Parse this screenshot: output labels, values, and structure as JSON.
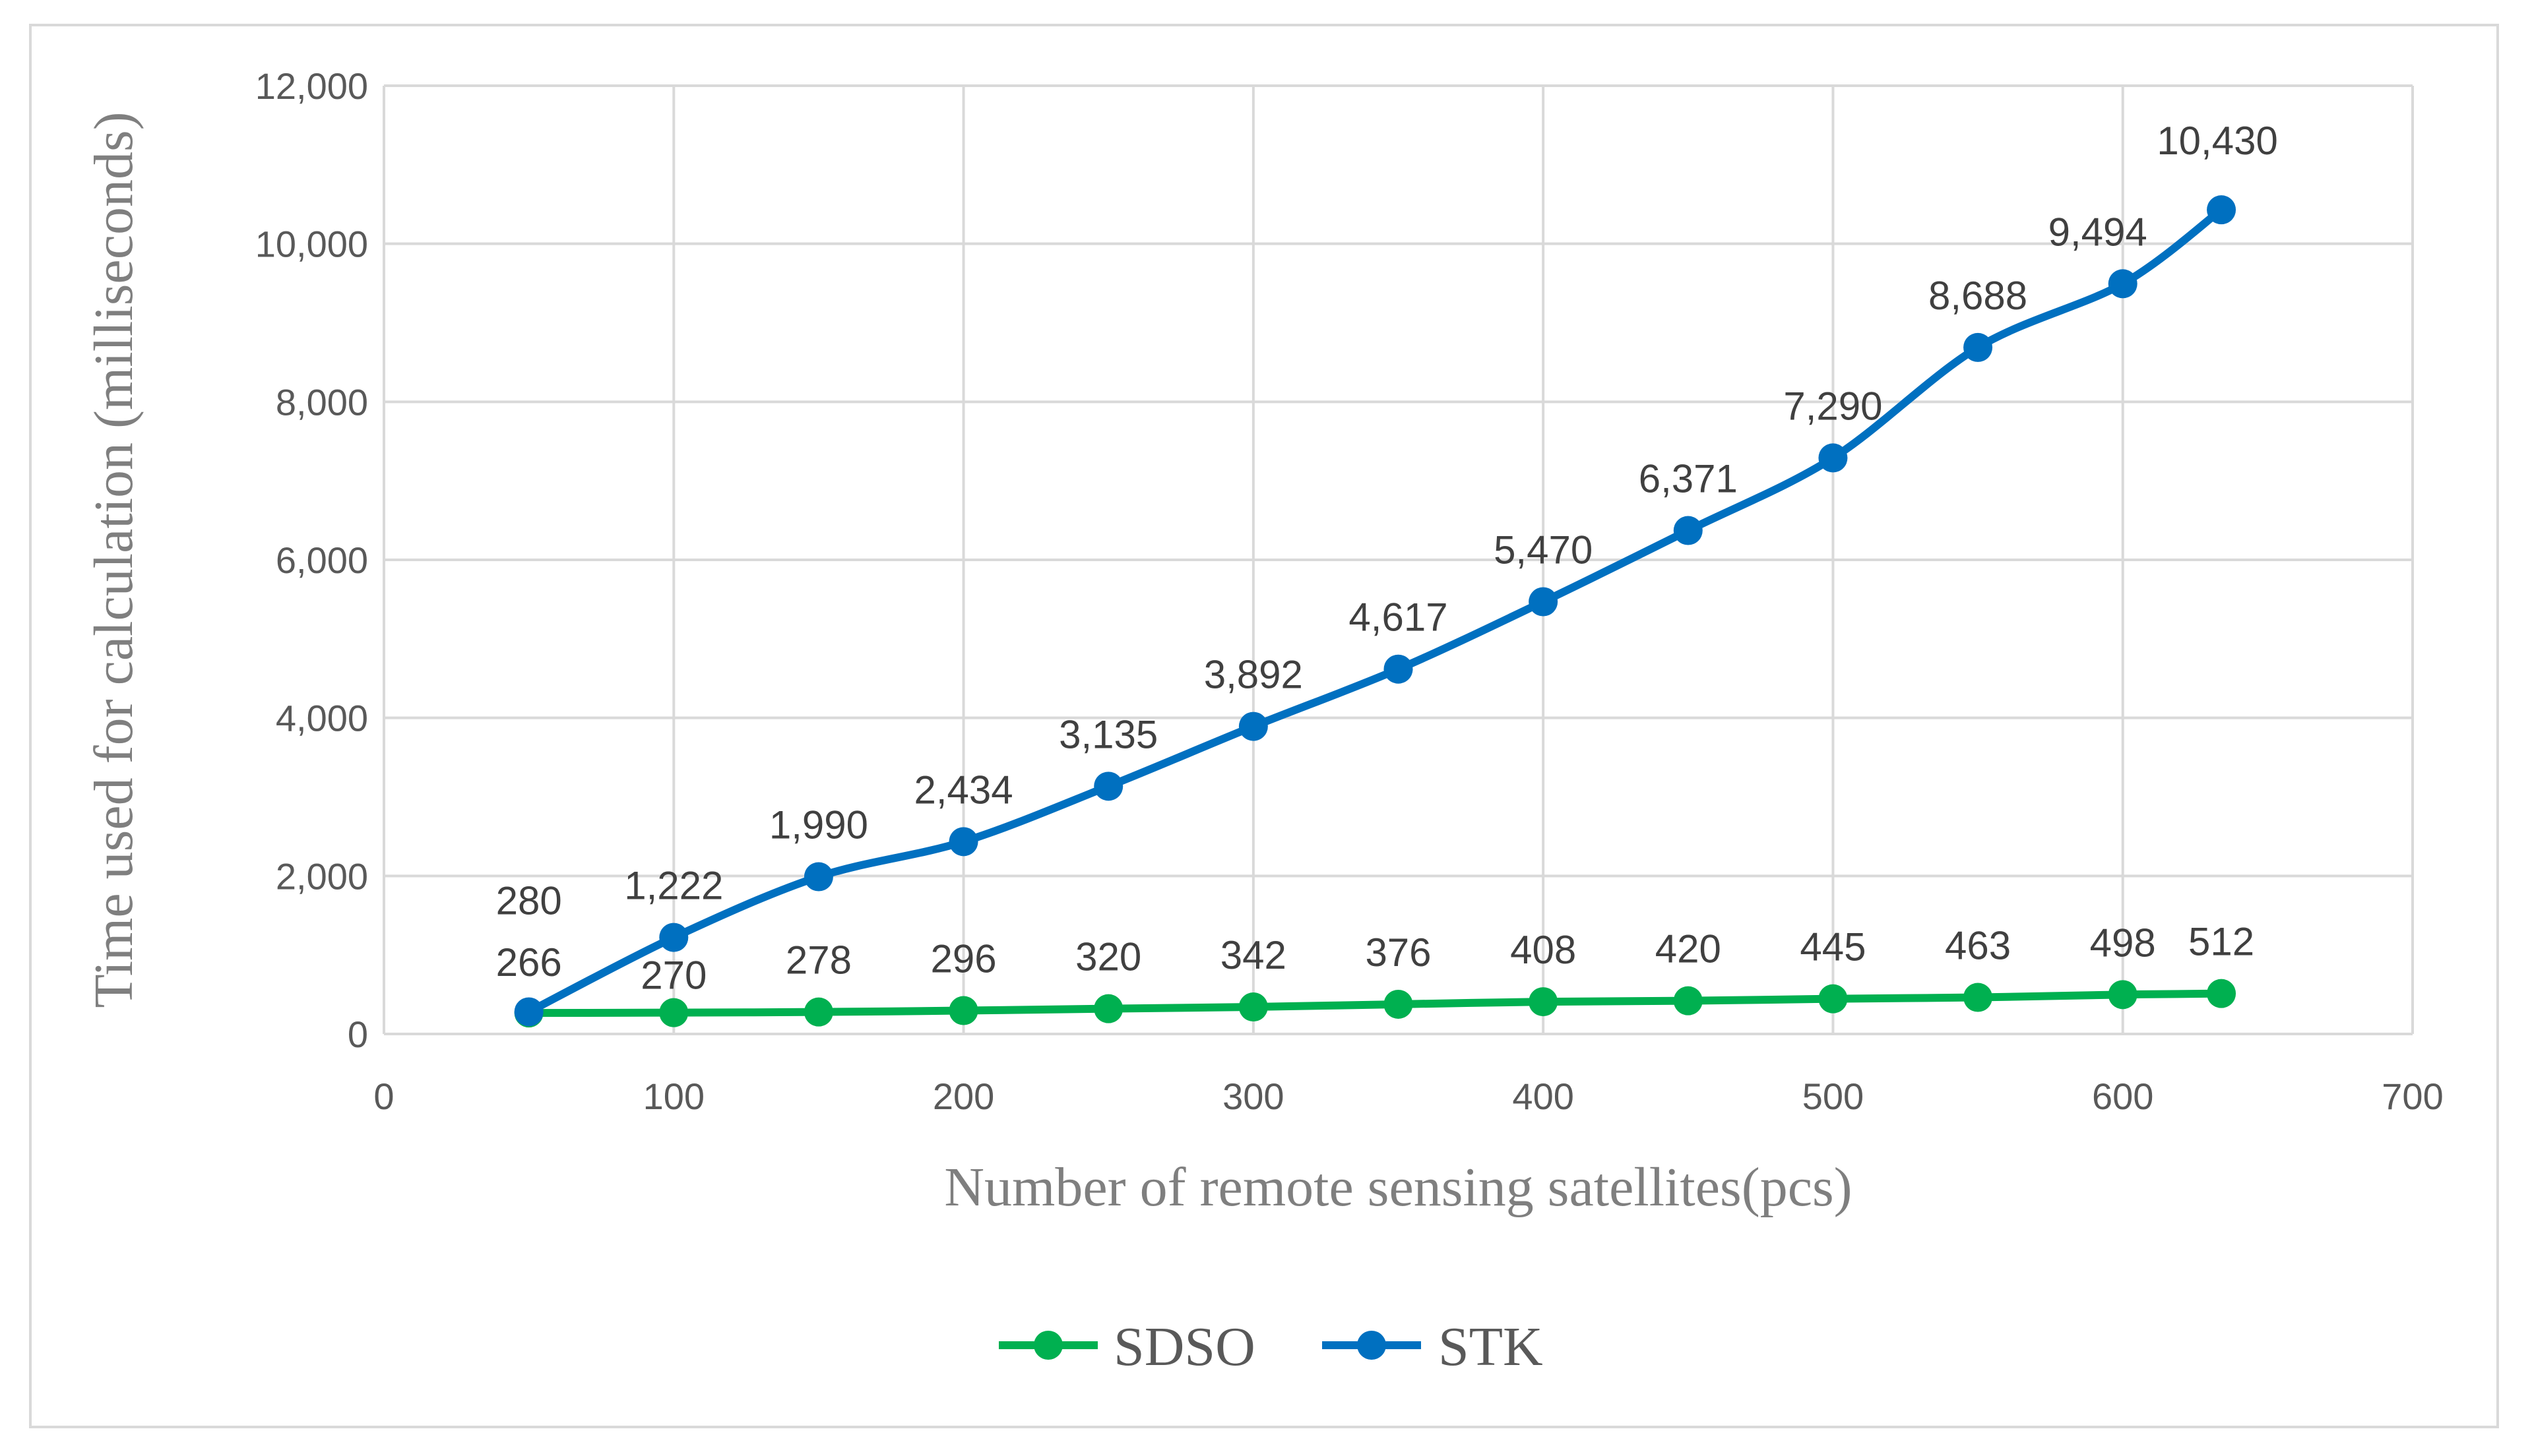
{
  "chart_data": {
    "type": "line",
    "title": "",
    "xlabel": "Number of remote sensing satellites(pcs)",
    "ylabel": "Time used for calculation (milliseconds)",
    "xlim": [
      0,
      700
    ],
    "ylim": [
      0,
      12000
    ],
    "x_ticks": [
      "0",
      "100",
      "200",
      "300",
      "400",
      "500",
      "600",
      "700"
    ],
    "y_ticks": [
      "0",
      "2,000",
      "4,000",
      "6,000",
      "8,000",
      "10,000",
      "12,000"
    ],
    "grid": true,
    "legend_position": "bottom",
    "series": [
      {
        "name": "SDSO",
        "color": "#00b050",
        "x": [
          50,
          100,
          150,
          200,
          250,
          300,
          350,
          400,
          450,
          500,
          550,
          600,
          634
        ],
        "y": [
          266,
          270,
          278,
          296,
          320,
          342,
          376,
          408,
          420,
          445,
          463,
          498,
          512
        ],
        "labels": [
          "266",
          "270",
          "278",
          "296",
          "320",
          "342",
          "376",
          "408",
          "420",
          "445",
          "463",
          "498",
          "512"
        ]
      },
      {
        "name": "STK",
        "color": "#0070c0",
        "x": [
          50,
          100,
          150,
          200,
          250,
          300,
          350,
          400,
          450,
          500,
          550,
          600,
          634
        ],
        "y": [
          280,
          1222,
          1990,
          2434,
          3135,
          3892,
          4617,
          5470,
          6371,
          7290,
          8688,
          9494,
          10430
        ],
        "labels": [
          "280",
          "1,222",
          "1,990",
          "2,434",
          "3,135",
          "3,892",
          "4,617",
          "5,470",
          "6,371",
          "7,290",
          "8,688",
          "9,494",
          "10,430"
        ]
      }
    ]
  },
  "colors": {
    "grid": "#d9d9d9",
    "frame": "#d9d9d9"
  }
}
